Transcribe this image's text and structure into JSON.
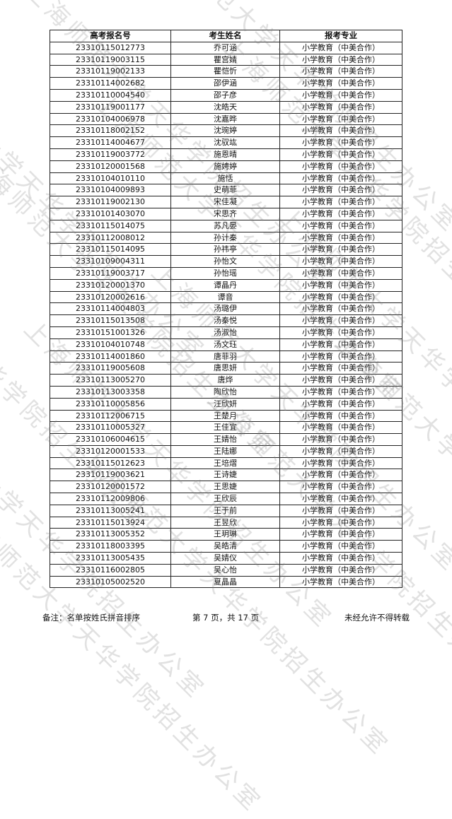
{
  "watermark": "上海师范大学天华学院招生办公室",
  "table": {
    "headers": [
      "高考报名号",
      "考生姓名",
      "报考专业"
    ],
    "rows": [
      [
        "23310115012773",
        "乔可涵",
        "小学教育（中美合作）"
      ],
      [
        "23310119003115",
        "瞿宫婧",
        "小学教育（中美合作）"
      ],
      [
        "23310119002133",
        "瞿恺忻",
        "小学教育（中美合作）"
      ],
      [
        "23310114002682",
        "邵伊涵",
        "小学教育（中美合作）"
      ],
      [
        "23310110004540",
        "邵子彦",
        "小学教育（中美合作）"
      ],
      [
        "23310119001177",
        "沈皓天",
        "小学教育（中美合作）"
      ],
      [
        "23310104006978",
        "沈嘉晔",
        "小学教育（中美合作）"
      ],
      [
        "23310118002152",
        "沈琬婷",
        "小学教育（中美合作）"
      ],
      [
        "23310114004677",
        "沈驭竑",
        "小学教育（中美合作）"
      ],
      [
        "23310119003772",
        "施恩晴",
        "小学教育（中美合作）"
      ],
      [
        "23310120001568",
        "施娉婷",
        "小学教育（中美合作）"
      ],
      [
        "23310104010110",
        "施恬",
        "小学教育（中美合作）"
      ],
      [
        "23310104009893",
        "史萌菲",
        "小学教育（中美合作）"
      ],
      [
        "23310119002130",
        "宋佳凝",
        "小学教育（中美合作）"
      ],
      [
        "23310101403070",
        "宋思齐",
        "小学教育（中美合作）"
      ],
      [
        "23310115014075",
        "苏凡晏",
        "小学教育（中美合作）"
      ],
      [
        "23310112008012",
        "孙计秦",
        "小学教育（中美合作）"
      ],
      [
        "23310115014095",
        "孙祎亭",
        "小学教育（中美合作）"
      ],
      [
        "23310109004311",
        "孙怡文",
        "小学教育（中美合作）"
      ],
      [
        "23310119003717",
        "孙怡瑶",
        "小学教育（中美合作）"
      ],
      [
        "23310120001370",
        "谭晶丹",
        "小学教育（中美合作）"
      ],
      [
        "23310120002616",
        "谭音",
        "小学教育（中美合作）"
      ],
      [
        "23310114004803",
        "汤璐伊",
        "小学教育（中美合作）"
      ],
      [
        "23310115013508",
        "汤秦悦",
        "小学教育（中美合作）"
      ],
      [
        "23310151001326",
        "汤淑怡",
        "小学教育（中美合作）"
      ],
      [
        "23310104010748",
        "汤文珏",
        "小学教育（中美合作）"
      ],
      [
        "23310114001860",
        "唐菲羽",
        "小学教育（中美合作）"
      ],
      [
        "23310119005608",
        "唐思妍",
        "小学教育（中美合作）"
      ],
      [
        "23310113005270",
        "唐烨",
        "小学教育（中美合作）"
      ],
      [
        "23310113003358",
        "陶欣怡",
        "小学教育（中美合作）"
      ],
      [
        "23310110005856",
        "汪欣妍",
        "小学教育（中美合作）"
      ],
      [
        "23310112006715",
        "王楚月",
        "小学教育（中美合作）"
      ],
      [
        "23310110005327",
        "王佳宜",
        "小学教育（中美合作）"
      ],
      [
        "23310106004615",
        "王婧怡",
        "小学教育（中美合作）"
      ],
      [
        "23310120001533",
        "王陆娜",
        "小学教育（中美合作）"
      ],
      [
        "23310115012623",
        "王培熠",
        "小学教育（中美合作）"
      ],
      [
        "23310119003621",
        "王诗婕",
        "小学教育（中美合作）"
      ],
      [
        "23310120001572",
        "王思婕",
        "小学教育（中美合作）"
      ],
      [
        "23310112009806",
        "王欣辰",
        "小学教育（中美合作）"
      ],
      [
        "23310113005241",
        "王于前",
        "小学教育（中美合作）"
      ],
      [
        "23310115013924",
        "王昱欣",
        "小学教育（中美合作）"
      ],
      [
        "23310113005352",
        "王玥琳",
        "小学教育（中美合作）"
      ],
      [
        "23310118003395",
        "吴皓清",
        "小学教育（中美合作）"
      ],
      [
        "23310113005435",
        "吴婧仪",
        "小学教育（中美合作）"
      ],
      [
        "23310116002805",
        "吴心怡",
        "小学教育（中美合作）"
      ],
      [
        "23310105002520",
        "夏晶晶",
        "小学教育（中美合作）"
      ]
    ]
  },
  "footer": {
    "note": "备注：名单按姓氏拼音排序",
    "page": "第 7 页，共 17 页",
    "copyright": "未经允许不得转载"
  }
}
